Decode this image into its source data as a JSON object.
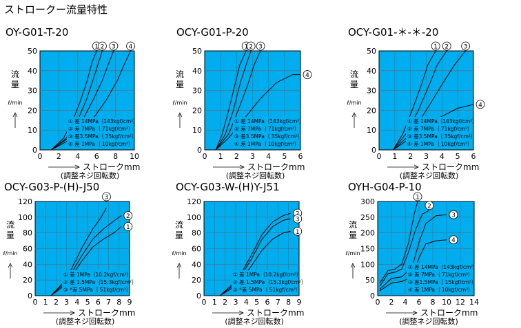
{
  "page_title": "ストロークー流量特性",
  "colors": {
    "plot_bg": "#00AEEF",
    "grid": "#5a6a74",
    "line": "#000000",
    "label_bg": "#ffffff"
  },
  "chart_data": [
    {
      "type": "line",
      "title": "OY-G01-T-20",
      "xlabel": "ストロークmm",
      "xlabel_sub": "(調整ネジ回転数)",
      "ylabel": "流量",
      "yunit": "ℓ/min",
      "xlim": [
        0,
        10
      ],
      "ylim": [
        0,
        50
      ],
      "xticks": [
        0,
        2,
        4,
        6,
        8,
        10
      ],
      "yticks": [
        0,
        10,
        20,
        30,
        40,
        50
      ],
      "grid": true,
      "series": [
        {
          "marker": "①",
          "x": [
            1.2,
            2.5,
            3.5,
            4.3,
            5.0,
            5.5,
            6.0
          ],
          "y": [
            0,
            6,
            15,
            25,
            35,
            44,
            50
          ]
        },
        {
          "marker": "②",
          "x": [
            1.2,
            2.8,
            4.0,
            4.9,
            5.6,
            6.2,
            6.6
          ],
          "y": [
            0,
            6,
            15,
            25,
            35,
            44,
            50
          ]
        },
        {
          "marker": "③",
          "x": [
            1.2,
            3.0,
            4.5,
            5.6,
            6.6,
            7.3,
            7.8
          ],
          "y": [
            0,
            6,
            15,
            25,
            35,
            44,
            50
          ]
        },
        {
          "marker": "④",
          "x": [
            1.2,
            3.5,
            5.5,
            7.0,
            8.2,
            9.0,
            9.6
          ],
          "y": [
            0,
            6,
            15,
            25,
            35,
            44,
            50
          ]
        }
      ],
      "legend": [
        "① 差 14MPa｛143kgf/cm²｝",
        "② 差 7MPa｛ 71kgf/cm²｝",
        "③ 差3.5MPa｛ 35kgf/cm²｝",
        "④ 差 1MPa｛ 10kgf/cm²｝"
      ]
    },
    {
      "type": "line",
      "title": "OCY-G01-P-20",
      "xlabel": "ストロークmm",
      "xlabel_sub": "(調整ネジ回転数)",
      "ylabel": "流量",
      "yunit": "ℓ/min",
      "xlim": [
        0,
        6
      ],
      "ylim": [
        0,
        50
      ],
      "xticks": [
        0,
        1,
        2,
        3,
        4,
        5,
        6
      ],
      "yticks": [
        0,
        10,
        20,
        30,
        40,
        50
      ],
      "grid": true,
      "series": [
        {
          "marker": "①",
          "x": [
            0.7,
            1.1,
            1.5,
            1.9,
            2.2,
            2.6
          ],
          "y": [
            0,
            8,
            20,
            33,
            43,
            50
          ]
        },
        {
          "marker": "②",
          "x": [
            0.7,
            1.3,
            1.8,
            2.2,
            2.6,
            2.9
          ],
          "y": [
            0,
            8,
            20,
            33,
            43,
            50
          ]
        },
        {
          "marker": "③",
          "x": [
            0.7,
            1.5,
            2.1,
            2.7,
            3.1,
            3.5
          ],
          "y": [
            0,
            8,
            20,
            33,
            43,
            50
          ]
        },
        {
          "marker": "④",
          "x": [
            0.7,
            1.5,
            2.5,
            3.5,
            4.5,
            5.5,
            6.0
          ],
          "y": [
            0,
            6,
            16,
            26,
            34,
            38,
            38
          ]
        }
      ],
      "legend": [
        "① 差 14MPa｛143kgf/cm²｝",
        "② 差 7MPa｛ 71kgf/cm²｝",
        "③ 差3.5MPa｛ 35kgf/cm²｝",
        "④ 差 1MPa｛ 10kgf/cm²｝"
      ]
    },
    {
      "type": "line",
      "title": "OCY-G01-＊-＊-20",
      "xlabel": "ストロークmm",
      "xlabel_sub": "(調整ネジ回転数)",
      "ylabel": "流量",
      "yunit": "ℓ/min",
      "xlim": [
        0,
        6
      ],
      "ylim": [
        0,
        50
      ],
      "xticks": [
        0,
        1,
        2,
        3,
        4,
        5,
        6
      ],
      "yticks": [
        0,
        10,
        20,
        30,
        40,
        50
      ],
      "grid": true,
      "series": [
        {
          "marker": "①",
          "x": [
            0.9,
            1.5,
            2.1,
            2.7,
            3.1,
            3.6
          ],
          "y": [
            0,
            8,
            20,
            33,
            43,
            50
          ]
        },
        {
          "marker": "②",
          "x": [
            0.9,
            1.7,
            2.5,
            3.2,
            3.7,
            4.3
          ],
          "y": [
            0,
            8,
            20,
            33,
            43,
            50
          ]
        },
        {
          "marker": "③",
          "x": [
            0.9,
            2.0,
            3.0,
            4.0,
            4.8,
            5.5
          ],
          "y": [
            0,
            8,
            20,
            33,
            43,
            50
          ]
        },
        {
          "marker": "④",
          "x": [
            0.9,
            2.0,
            3.0,
            4.0,
            5.0,
            6.0
          ],
          "y": [
            0,
            6,
            12,
            17,
            21,
            23
          ]
        }
      ],
      "legend": [
        "① 差 14MPa｛143kgf/cm²｝",
        "② 差 7MPa｛ 71kgf/cm²｝",
        "③ 差3.5MPa｛ 35kgf/cm²｝",
        "④ 差 1MPa｛ 10kgf/cm²｝"
      ]
    },
    {
      "type": "line",
      "title": "OCY-G03-P-(H)-J50",
      "xlabel": "ストロークmm",
      "xlabel_sub": "(調整ネジ回転数)",
      "ylabel": "流量",
      "yunit": "ℓ/min",
      "xlim": [
        0,
        9
      ],
      "ylim": [
        0,
        120
      ],
      "xticks": [
        0,
        1,
        2,
        3,
        4,
        5,
        6,
        7,
        8,
        9
      ],
      "yticks": [
        0,
        20,
        40,
        60,
        80,
        100,
        120
      ],
      "grid": true,
      "series": [
        {
          "marker": "①",
          "x": [
            1.5,
            2.5,
            3.5,
            4.5,
            5.5,
            6.5,
            7.5,
            8.2
          ],
          "y": [
            0,
            10,
            25,
            45,
            62,
            72,
            80,
            88
          ]
        },
        {
          "marker": "②",
          "x": [
            1.5,
            2.5,
            3.5,
            4.5,
            5.5,
            6.5,
            7.5,
            8.2
          ],
          "y": [
            0,
            12,
            30,
            52,
            72,
            85,
            95,
            102
          ]
        },
        {
          "marker": "③",
          "x": [
            1.5,
            2.5,
            3.5,
            4.5,
            5.5,
            6.2,
            6.8
          ],
          "y": [
            0,
            14,
            35,
            62,
            85,
            98,
            112
          ]
        }
      ],
      "legend": [
        "① 差 1MPa｛10.2kgf/cm²｝",
        "② 差 1.5MPa｛15.3kgf/cm²｝",
        "③ *差 5MPa｛ 51kgf/cm²｝"
      ]
    },
    {
      "type": "line",
      "title": "OCY-G03-W-(H)Y-J51",
      "xlabel": "ストロークmm",
      "xlabel_sub": "(調整ネジ回転数)",
      "ylabel": "流量",
      "yunit": "ℓ/min",
      "xlim": [
        0,
        9
      ],
      "ylim": [
        0,
        120
      ],
      "xticks": [
        0,
        1,
        2,
        3,
        4,
        5,
        6,
        7,
        8,
        9
      ],
      "yticks": [
        0,
        20,
        40,
        60,
        80,
        100,
        120
      ],
      "grid": true,
      "series": [
        {
          "marker": "①",
          "x": [
            1.5,
            2.5,
            3.5,
            4.5,
            5.5,
            6.5,
            7.5,
            8.2
          ],
          "y": [
            0,
            8,
            20,
            38,
            58,
            72,
            80,
            82
          ]
        },
        {
          "marker": "②",
          "x": [
            1.5,
            2.5,
            3.5,
            4.5,
            5.5,
            6.5,
            7.5,
            8.2
          ],
          "y": [
            0,
            12,
            28,
            52,
            78,
            94,
            102,
            105
          ]
        },
        {
          "marker": "③",
          "x": [
            1.5,
            2.5,
            3.5,
            4.5,
            5.5,
            6.5,
            7.5,
            8.2
          ],
          "y": [
            0,
            10,
            25,
            47,
            72,
            88,
            96,
            98
          ]
        }
      ],
      "legend": [
        "① 差 1MPa｛10.2kgf/cm²｝",
        "② 差 1.5MPa｛15.3kgf/cm²｝",
        "③ *差 5MPa｛ 51kgf/cm²｝"
      ]
    },
    {
      "type": "line",
      "title": "OYH-G04-P-10",
      "xlabel": "ストロークmm",
      "xlabel_sub": "(調整ネジ回転数)",
      "ylabel": "流量",
      "yunit": "ℓ/min",
      "xlim": [
        0,
        14
      ],
      "ylim": [
        0,
        300
      ],
      "xticks": [
        0,
        2,
        4,
        6,
        8,
        10,
        12,
        14
      ],
      "yticks": [
        0,
        50,
        100,
        150,
        200,
        250,
        300
      ],
      "grid": true,
      "series": [
        {
          "marker": "①",
          "x": [
            0.3,
            1.5,
            2.5,
            3.5,
            4.5,
            5.3,
            5.8
          ],
          "y": [
            40,
            80,
            85,
            100,
            170,
            260,
            300
          ]
        },
        {
          "marker": "②",
          "x": [
            0.3,
            1.5,
            2.5,
            3.5,
            4.5,
            5.5,
            6.5,
            7.5
          ],
          "y": [
            30,
            70,
            75,
            85,
            140,
            210,
            260,
            272
          ]
        },
        {
          "marker": "③",
          "x": [
            0.3,
            2.0,
            3.5,
            5.0,
            6.0,
            7.0,
            8.5,
            10.0
          ],
          "y": [
            20,
            55,
            60,
            90,
            170,
            230,
            255,
            258
          ]
        },
        {
          "marker": "④",
          "x": [
            0.3,
            2.0,
            3.5,
            5.0,
            6.0,
            7.0,
            8.5,
            10.0
          ],
          "y": [
            15,
            40,
            45,
            60,
            120,
            165,
            175,
            178
          ]
        }
      ],
      "legend": [
        "① 差 14MPa｛143kgf/cm²｝",
        "② 差 7MPa｛ 71kgf/cm²｝",
        "③ 差1.5MPa｛ 15kgf/cm²｝",
        "④ 差 1MPa｛ 10kgf/cm²｝"
      ]
    }
  ]
}
